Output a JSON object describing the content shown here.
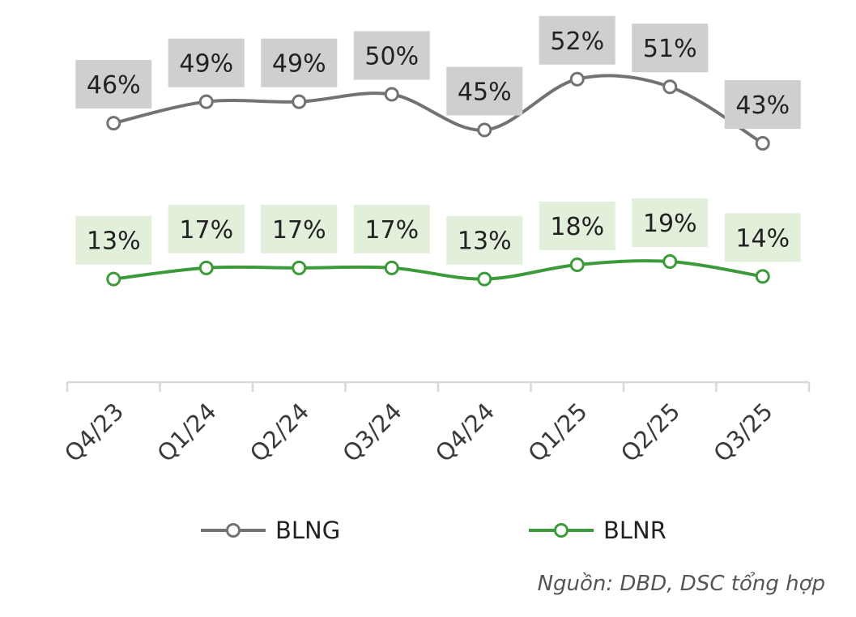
{
  "chart_data": {
    "type": "line",
    "categories": [
      "Q4/23",
      "Q1/24",
      "Q2/24",
      "Q3/24",
      "Q4/24",
      "Q1/25",
      "Q2/25",
      "Q3/25"
    ],
    "series": [
      {
        "name": "BLNG",
        "values": [
          46,
          49,
          49,
          50,
          45,
          52,
          51,
          43
        ],
        "labels": [
          "46%",
          "49%",
          "49%",
          "50%",
          "45%",
          "52%",
          "51%",
          "43%"
        ],
        "line_color": "#767171",
        "label_bg": "#d0cece"
      },
      {
        "name": "BLNR",
        "values": [
          13,
          17,
          17,
          17,
          13,
          18,
          19,
          14
        ],
        "labels": [
          "13%",
          "17%",
          "17%",
          "17%",
          "13%",
          "18%",
          "19%",
          "14%"
        ],
        "line_color": "#3d9a3a",
        "label_bg": "#e2efda"
      }
    ],
    "axis_color": "#d9d9d9",
    "legend_position": "bottom",
    "smooth": true,
    "y_axis_visible": false,
    "grid": false
  },
  "source": "Nguồn: DBD, DSC tổng hợp"
}
